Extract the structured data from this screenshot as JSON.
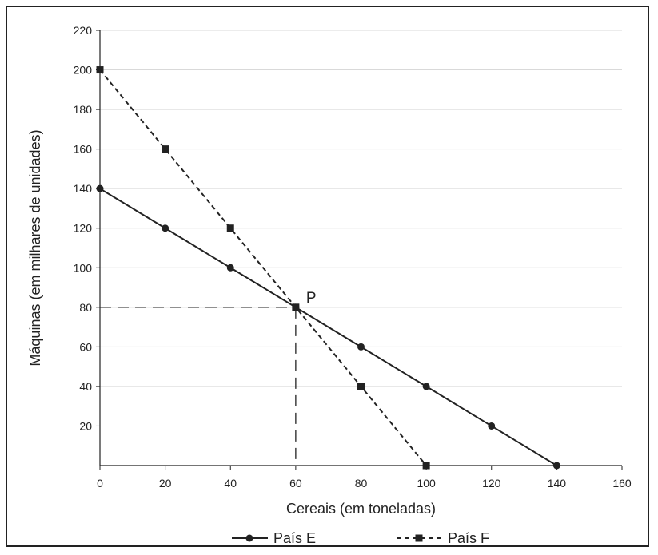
{
  "chart_data": {
    "type": "line",
    "title": "",
    "xlabel": "Cereais (em toneladas)",
    "ylabel": "Máquinas (em milhares de unidades)",
    "xlim": [
      0,
      160
    ],
    "ylim": [
      0,
      220
    ],
    "x_ticks": [
      0,
      20,
      40,
      60,
      80,
      100,
      120,
      140,
      160
    ],
    "y_ticks": [
      20,
      40,
      60,
      80,
      100,
      120,
      140,
      160,
      180,
      200,
      220
    ],
    "x_tick_labels": [
      "0",
      "20",
      "40",
      "60",
      "80",
      "100",
      "120",
      "140",
      "160"
    ],
    "y_tick_labels": [
      "20",
      "40",
      "60",
      "80",
      "100",
      "120",
      "140",
      "160",
      "180",
      "200",
      "220"
    ],
    "grid": true,
    "legend_position": "bottom",
    "series": [
      {
        "name": "País E",
        "line_style": "solid",
        "marker": "circle",
        "color": "#222222",
        "x": [
          0,
          20,
          40,
          60,
          80,
          100,
          120,
          140
        ],
        "y": [
          140,
          120,
          100,
          80,
          60,
          40,
          20,
          0
        ]
      },
      {
        "name": "País F",
        "line_style": "dashed",
        "marker": "square",
        "color": "#222222",
        "x": [
          0,
          20,
          40,
          60,
          80,
          100
        ],
        "y": [
          200,
          160,
          120,
          80,
          40,
          0
        ]
      }
    ],
    "annotations": [
      {
        "label": "P",
        "x": 60,
        "y": 80
      }
    ]
  }
}
